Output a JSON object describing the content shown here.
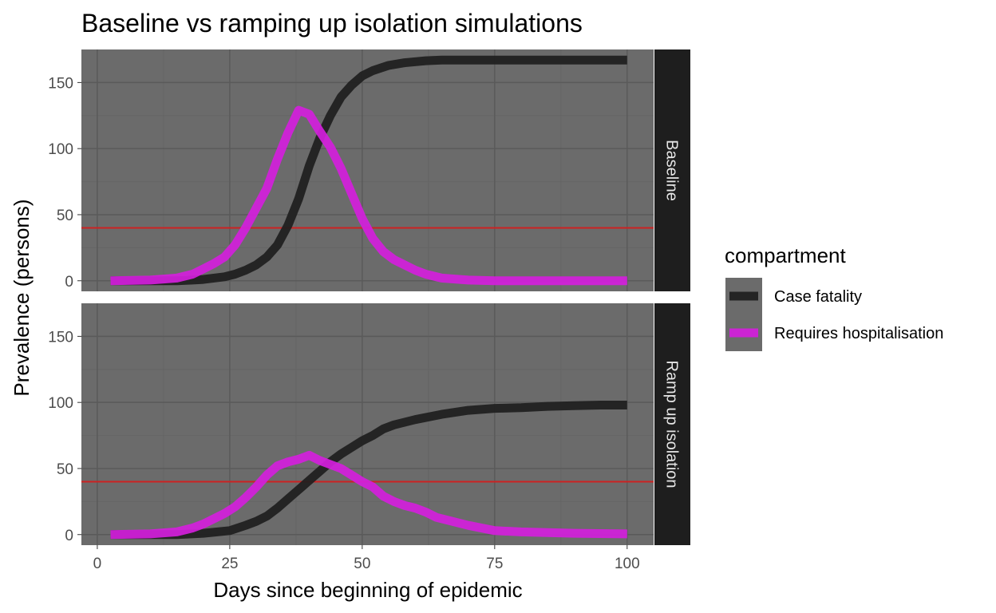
{
  "chart_data": {
    "type": "line",
    "title": "Baseline vs ramping up isolation simulations",
    "xlabel": "Days since beginning of epidemic",
    "ylabel": "Prevalence (persons)",
    "xlim": [
      -3,
      105
    ],
    "ylim": [
      -8,
      175
    ],
    "x_ticks": [
      0,
      25,
      50,
      75,
      100
    ],
    "y_ticks": [
      0,
      50,
      100,
      150
    ],
    "grid": true,
    "facet_layout": "rows",
    "reference_line": {
      "y": 40,
      "color": "#cc2222"
    },
    "legend": {
      "title": "compartment",
      "position": "right",
      "entries": [
        {
          "label": "Case fatality",
          "color": "#1e1e1e"
        },
        {
          "label": "Requires hospitalisation",
          "color": "#d41fdc"
        }
      ]
    },
    "colors": {
      "panel_background": "#6b6b6b",
      "grid_major": "#5a5a5a",
      "grid_minor": "#656565",
      "strip_background": "#1e1e1e"
    },
    "panels": [
      {
        "label": "Baseline",
        "series": [
          {
            "name": "Case fatality",
            "color": "#1e1e1e",
            "points": [
              [
                2.5,
                0
              ],
              [
                10,
                0
              ],
              [
                15,
                0
              ],
              [
                18,
                0.5
              ],
              [
                20,
                1
              ],
              [
                22,
                2
              ],
              [
                24,
                3
              ],
              [
                26,
                5
              ],
              [
                28,
                8
              ],
              [
                30,
                12
              ],
              [
                32,
                18
              ],
              [
                34,
                27
              ],
              [
                36,
                42
              ],
              [
                38,
                62
              ],
              [
                40,
                87
              ],
              [
                42,
                108
              ],
              [
                44,
                125
              ],
              [
                46,
                139
              ],
              [
                48,
                148
              ],
              [
                50,
                155
              ],
              [
                52,
                159
              ],
              [
                55,
                163
              ],
              [
                58,
                165
              ],
              [
                62,
                166.5
              ],
              [
                65,
                167
              ],
              [
                70,
                167
              ],
              [
                80,
                167
              ],
              [
                90,
                167
              ],
              [
                100,
                167
              ]
            ]
          },
          {
            "name": "Requires hospitalisation",
            "color": "#d41fdc",
            "points": [
              [
                2.5,
                0
              ],
              [
                10,
                0.5
              ],
              [
                15,
                2
              ],
              [
                18,
                5
              ],
              [
                20,
                9
              ],
              [
                22,
                13
              ],
              [
                24,
                18
              ],
              [
                26,
                27
              ],
              [
                28,
                40
              ],
              [
                30,
                55
              ],
              [
                32,
                70
              ],
              [
                34,
                92
              ],
              [
                36,
                112
              ],
              [
                38,
                129
              ],
              [
                40,
                126
              ],
              [
                42,
                113
              ],
              [
                44,
                101
              ],
              [
                46,
                85
              ],
              [
                48,
                66
              ],
              [
                50,
                47
              ],
              [
                52,
                32
              ],
              [
                54,
                22
              ],
              [
                56,
                16
              ],
              [
                58,
                12
              ],
              [
                60,
                8
              ],
              [
                62,
                5
              ],
              [
                65,
                2
              ],
              [
                70,
                0.5
              ],
              [
                75,
                0
              ],
              [
                100,
                0
              ]
            ]
          }
        ]
      },
      {
        "label": "Ramp up isolation",
        "series": [
          {
            "name": "Case fatality",
            "color": "#1e1e1e",
            "points": [
              [
                2.5,
                0
              ],
              [
                15,
                0
              ],
              [
                20,
                1
              ],
              [
                25,
                3
              ],
              [
                28,
                7
              ],
              [
                30,
                10
              ],
              [
                32,
                14
              ],
              [
                34,
                20
              ],
              [
                36,
                27
              ],
              [
                38,
                34
              ],
              [
                40,
                41
              ],
              [
                42,
                48
              ],
              [
                44,
                55
              ],
              [
                46,
                61
              ],
              [
                48,
                66
              ],
              [
                50,
                71
              ],
              [
                52,
                75
              ],
              [
                54,
                80
              ],
              [
                56,
                83
              ],
              [
                60,
                87
              ],
              [
                65,
                91
              ],
              [
                70,
                94
              ],
              [
                75,
                95.5
              ],
              [
                80,
                96
              ],
              [
                85,
                97
              ],
              [
                90,
                97.5
              ],
              [
                95,
                98
              ],
              [
                100,
                98
              ]
            ]
          },
          {
            "name": "Requires hospitalisation",
            "color": "#d41fdc",
            "points": [
              [
                2.5,
                0
              ],
              [
                10,
                0.5
              ],
              [
                15,
                2
              ],
              [
                18,
                5
              ],
              [
                20,
                8
              ],
              [
                22,
                12
              ],
              [
                24,
                16
              ],
              [
                26,
                21
              ],
              [
                28,
                28
              ],
              [
                30,
                36
              ],
              [
                32,
                45
              ],
              [
                34,
                52
              ],
              [
                36,
                55
              ],
              [
                38,
                57
              ],
              [
                40,
                60
              ],
              [
                42,
                56
              ],
              [
                44,
                53
              ],
              [
                46,
                50
              ],
              [
                48,
                45
              ],
              [
                50,
                40
              ],
              [
                52,
                36
              ],
              [
                54,
                29
              ],
              [
                56,
                25
              ],
              [
                58,
                22
              ],
              [
                60,
                20
              ],
              [
                62,
                17
              ],
              [
                64,
                13
              ],
              [
                67,
                10
              ],
              [
                70,
                7
              ],
              [
                75,
                3
              ],
              [
                80,
                2
              ],
              [
                90,
                1
              ],
              [
                100,
                0.5
              ]
            ]
          }
        ]
      }
    ]
  }
}
